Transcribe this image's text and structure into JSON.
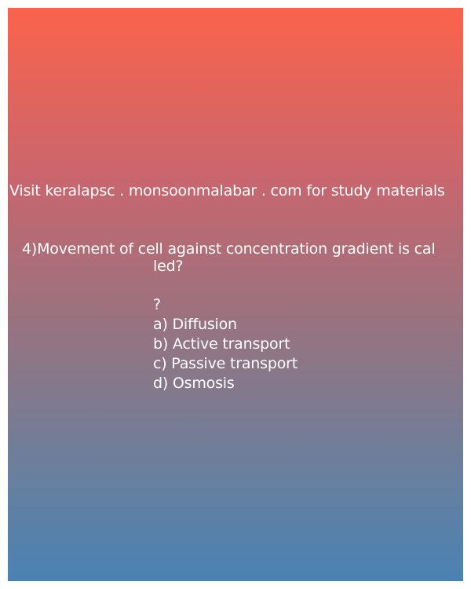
{
  "header": {
    "visit_text": "Visit keralapsc . monsoonmalabar . com for study materials"
  },
  "question": {
    "line1": "4)Movement of cell against concentration gradient is cal",
    "line2": "led?"
  },
  "options": {
    "marker": "?",
    "a": "a) Diffusion",
    "b": "b) Active transport",
    "c": "c) Passive transport",
    "d": "d) Osmosis"
  },
  "colors": {
    "gradient_top": "#fb634b",
    "gradient_bottom": "#4a82b3",
    "text": "#ffffff"
  }
}
